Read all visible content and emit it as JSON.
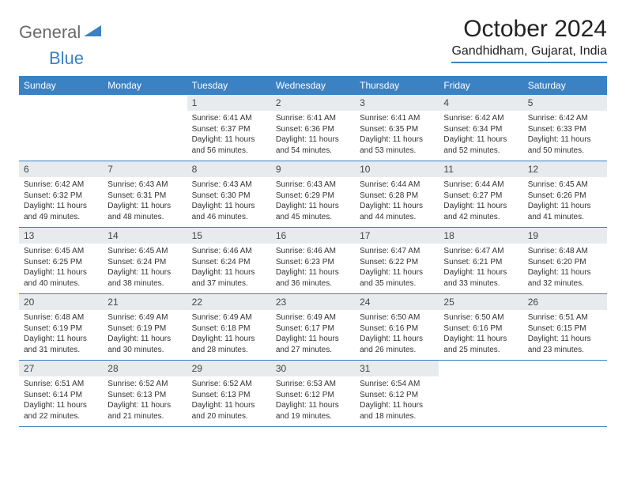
{
  "logo": {
    "text1": "General",
    "text2": "Blue"
  },
  "title": "October 2024",
  "location": "Gandhidham, Gujarat, India",
  "colors": {
    "accent": "#3b82c4",
    "daynum_bg": "#e8ebed",
    "text": "#333333",
    "logo_gray": "#6a6a6a"
  },
  "day_headers": [
    "Sunday",
    "Monday",
    "Tuesday",
    "Wednesday",
    "Thursday",
    "Friday",
    "Saturday"
  ],
  "weeks": [
    [
      null,
      null,
      {
        "n": "1",
        "sr": "6:41 AM",
        "ss": "6:37 PM",
        "dh": "11",
        "dm": "56"
      },
      {
        "n": "2",
        "sr": "6:41 AM",
        "ss": "6:36 PM",
        "dh": "11",
        "dm": "54"
      },
      {
        "n": "3",
        "sr": "6:41 AM",
        "ss": "6:35 PM",
        "dh": "11",
        "dm": "53"
      },
      {
        "n": "4",
        "sr": "6:42 AM",
        "ss": "6:34 PM",
        "dh": "11",
        "dm": "52"
      },
      {
        "n": "5",
        "sr": "6:42 AM",
        "ss": "6:33 PM",
        "dh": "11",
        "dm": "50"
      }
    ],
    [
      {
        "n": "6",
        "sr": "6:42 AM",
        "ss": "6:32 PM",
        "dh": "11",
        "dm": "49"
      },
      {
        "n": "7",
        "sr": "6:43 AM",
        "ss": "6:31 PM",
        "dh": "11",
        "dm": "48"
      },
      {
        "n": "8",
        "sr": "6:43 AM",
        "ss": "6:30 PM",
        "dh": "11",
        "dm": "46"
      },
      {
        "n": "9",
        "sr": "6:43 AM",
        "ss": "6:29 PM",
        "dh": "11",
        "dm": "45"
      },
      {
        "n": "10",
        "sr": "6:44 AM",
        "ss": "6:28 PM",
        "dh": "11",
        "dm": "44"
      },
      {
        "n": "11",
        "sr": "6:44 AM",
        "ss": "6:27 PM",
        "dh": "11",
        "dm": "42"
      },
      {
        "n": "12",
        "sr": "6:45 AM",
        "ss": "6:26 PM",
        "dh": "11",
        "dm": "41"
      }
    ],
    [
      {
        "n": "13",
        "sr": "6:45 AM",
        "ss": "6:25 PM",
        "dh": "11",
        "dm": "40"
      },
      {
        "n": "14",
        "sr": "6:45 AM",
        "ss": "6:24 PM",
        "dh": "11",
        "dm": "38"
      },
      {
        "n": "15",
        "sr": "6:46 AM",
        "ss": "6:24 PM",
        "dh": "11",
        "dm": "37"
      },
      {
        "n": "16",
        "sr": "6:46 AM",
        "ss": "6:23 PM",
        "dh": "11",
        "dm": "36"
      },
      {
        "n": "17",
        "sr": "6:47 AM",
        "ss": "6:22 PM",
        "dh": "11",
        "dm": "35"
      },
      {
        "n": "18",
        "sr": "6:47 AM",
        "ss": "6:21 PM",
        "dh": "11",
        "dm": "33"
      },
      {
        "n": "19",
        "sr": "6:48 AM",
        "ss": "6:20 PM",
        "dh": "11",
        "dm": "32"
      }
    ],
    [
      {
        "n": "20",
        "sr": "6:48 AM",
        "ss": "6:19 PM",
        "dh": "11",
        "dm": "31"
      },
      {
        "n": "21",
        "sr": "6:49 AM",
        "ss": "6:19 PM",
        "dh": "11",
        "dm": "30"
      },
      {
        "n": "22",
        "sr": "6:49 AM",
        "ss": "6:18 PM",
        "dh": "11",
        "dm": "28"
      },
      {
        "n": "23",
        "sr": "6:49 AM",
        "ss": "6:17 PM",
        "dh": "11",
        "dm": "27"
      },
      {
        "n": "24",
        "sr": "6:50 AM",
        "ss": "6:16 PM",
        "dh": "11",
        "dm": "26"
      },
      {
        "n": "25",
        "sr": "6:50 AM",
        "ss": "6:16 PM",
        "dh": "11",
        "dm": "25"
      },
      {
        "n": "26",
        "sr": "6:51 AM",
        "ss": "6:15 PM",
        "dh": "11",
        "dm": "23"
      }
    ],
    [
      {
        "n": "27",
        "sr": "6:51 AM",
        "ss": "6:14 PM",
        "dh": "11",
        "dm": "22"
      },
      {
        "n": "28",
        "sr": "6:52 AM",
        "ss": "6:13 PM",
        "dh": "11",
        "dm": "21"
      },
      {
        "n": "29",
        "sr": "6:52 AM",
        "ss": "6:13 PM",
        "dh": "11",
        "dm": "20"
      },
      {
        "n": "30",
        "sr": "6:53 AM",
        "ss": "6:12 PM",
        "dh": "11",
        "dm": "19"
      },
      {
        "n": "31",
        "sr": "6:54 AM",
        "ss": "6:12 PM",
        "dh": "11",
        "dm": "18"
      },
      null,
      null
    ]
  ],
  "labels": {
    "sunrise": "Sunrise:",
    "sunset": "Sunset:",
    "daylight": "Daylight:",
    "hours": "hours",
    "and": "and",
    "minutes": "minutes."
  }
}
